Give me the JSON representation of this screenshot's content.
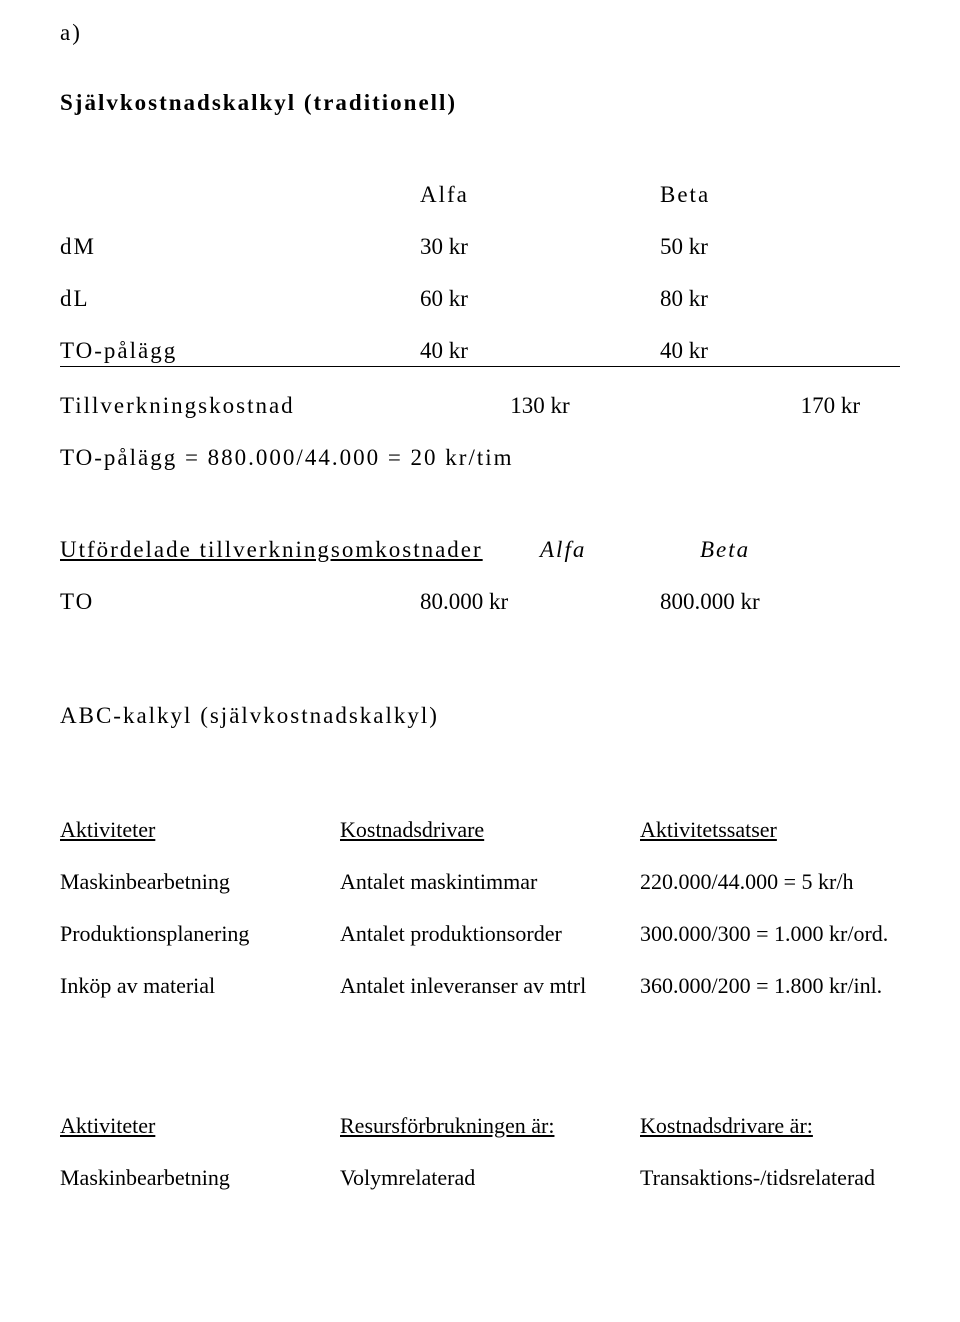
{
  "text": {
    "section_a": "a)",
    "title1": "Självkostnadskalkyl (traditionell)",
    "h_alfa": "Alfa",
    "h_beta": "Beta",
    "r_dm": "dM",
    "r_dm_a": "30 kr",
    "r_dm_b": "50 kr",
    "r_dl": "dL",
    "r_dl_a": "60 kr",
    "r_dl_b": "80 kr",
    "r_to": "TO-pålägg",
    "r_to_a": "40 kr",
    "r_to_b": "40 kr",
    "r_tillv": "Tillverkningskostnad",
    "r_tillv_a": "130 kr",
    "r_tillv_b": "170 kr",
    "to_formula": "TO-pålägg = 880.000/44.000 = 20 kr/tim",
    "utford_title": "Utfördelade tillverkningsomkostnader",
    "utford_alfa": "Alfa",
    "utford_beta": "Beta",
    "r_to2": "TO",
    "r_to2_a": "80.000 kr",
    "r_to2_b": "800.000 kr",
    "title2": "ABC-kalkyl (självkostnadskalkyl)",
    "h_akt": "Aktiviteter",
    "h_drv": "Kostnadsdrivare",
    "h_sats": "Aktivitetssatser",
    "r_mask": "Maskinbearbetning",
    "r_mask_d": "Antalet maskintimmar",
    "r_mask_s": "220.000/44.000 = 5 kr/h",
    "r_prod": "Produktionsplanering",
    "r_prod_d": "Antalet produktionsorder",
    "r_prod_s": "300.000/300 = 1.000 kr/ord.",
    "r_ink": "Inköp av material",
    "r_ink_d": "Antalet inleveranser av mtrl",
    "r_ink_s": "360.000/200 = 1.800 kr/inl.",
    "h_akt2": "Aktiviteter",
    "h_res": "Resursförbrukningen är:",
    "h_kdr": "Kostnadsdrivare är:",
    "r_mask2": "Maskinbearbetning",
    "r_mask2_r": "Volymrelaterad",
    "r_mask2_k": "Transaktions-/tidsrelaterad"
  },
  "layout": {
    "col1_w": 360,
    "col2_w": 240,
    "col3_w": 200
  },
  "style": {
    "font_family": "Times New Roman",
    "bg": "#ffffff",
    "fg": "#000000",
    "letter_spacing_spaced": 2,
    "fs_label": 23,
    "fs_plain": 22
  }
}
